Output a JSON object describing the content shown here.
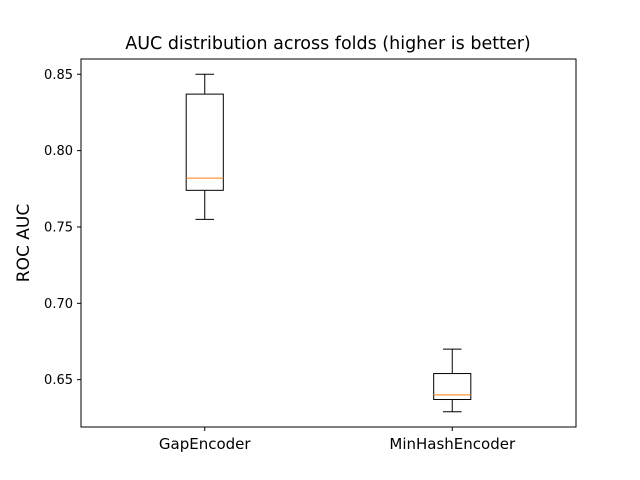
{
  "chart_data": {
    "type": "box",
    "title": "AUC distribution across folds (higher is better)",
    "xlabel": "",
    "ylabel": "ROC AUC",
    "categories": [
      "GapEncoder",
      "MinHashEncoder"
    ],
    "boxes": [
      {
        "name": "GapEncoder",
        "whisker_low": 0.755,
        "q1": 0.774,
        "median": 0.782,
        "q3": 0.837,
        "whisker_high": 0.85
      },
      {
        "name": "MinHashEncoder",
        "whisker_low": 0.629,
        "q1": 0.637,
        "median": 0.64,
        "q3": 0.654,
        "whisker_high": 0.67
      }
    ],
    "ylim": [
      0.619,
      0.86
    ],
    "yticks": [
      "0.65",
      "0.70",
      "0.75",
      "0.80",
      "0.85"
    ],
    "grid": false,
    "median_color": "#ff7f0e",
    "box_color": "#000000"
  }
}
